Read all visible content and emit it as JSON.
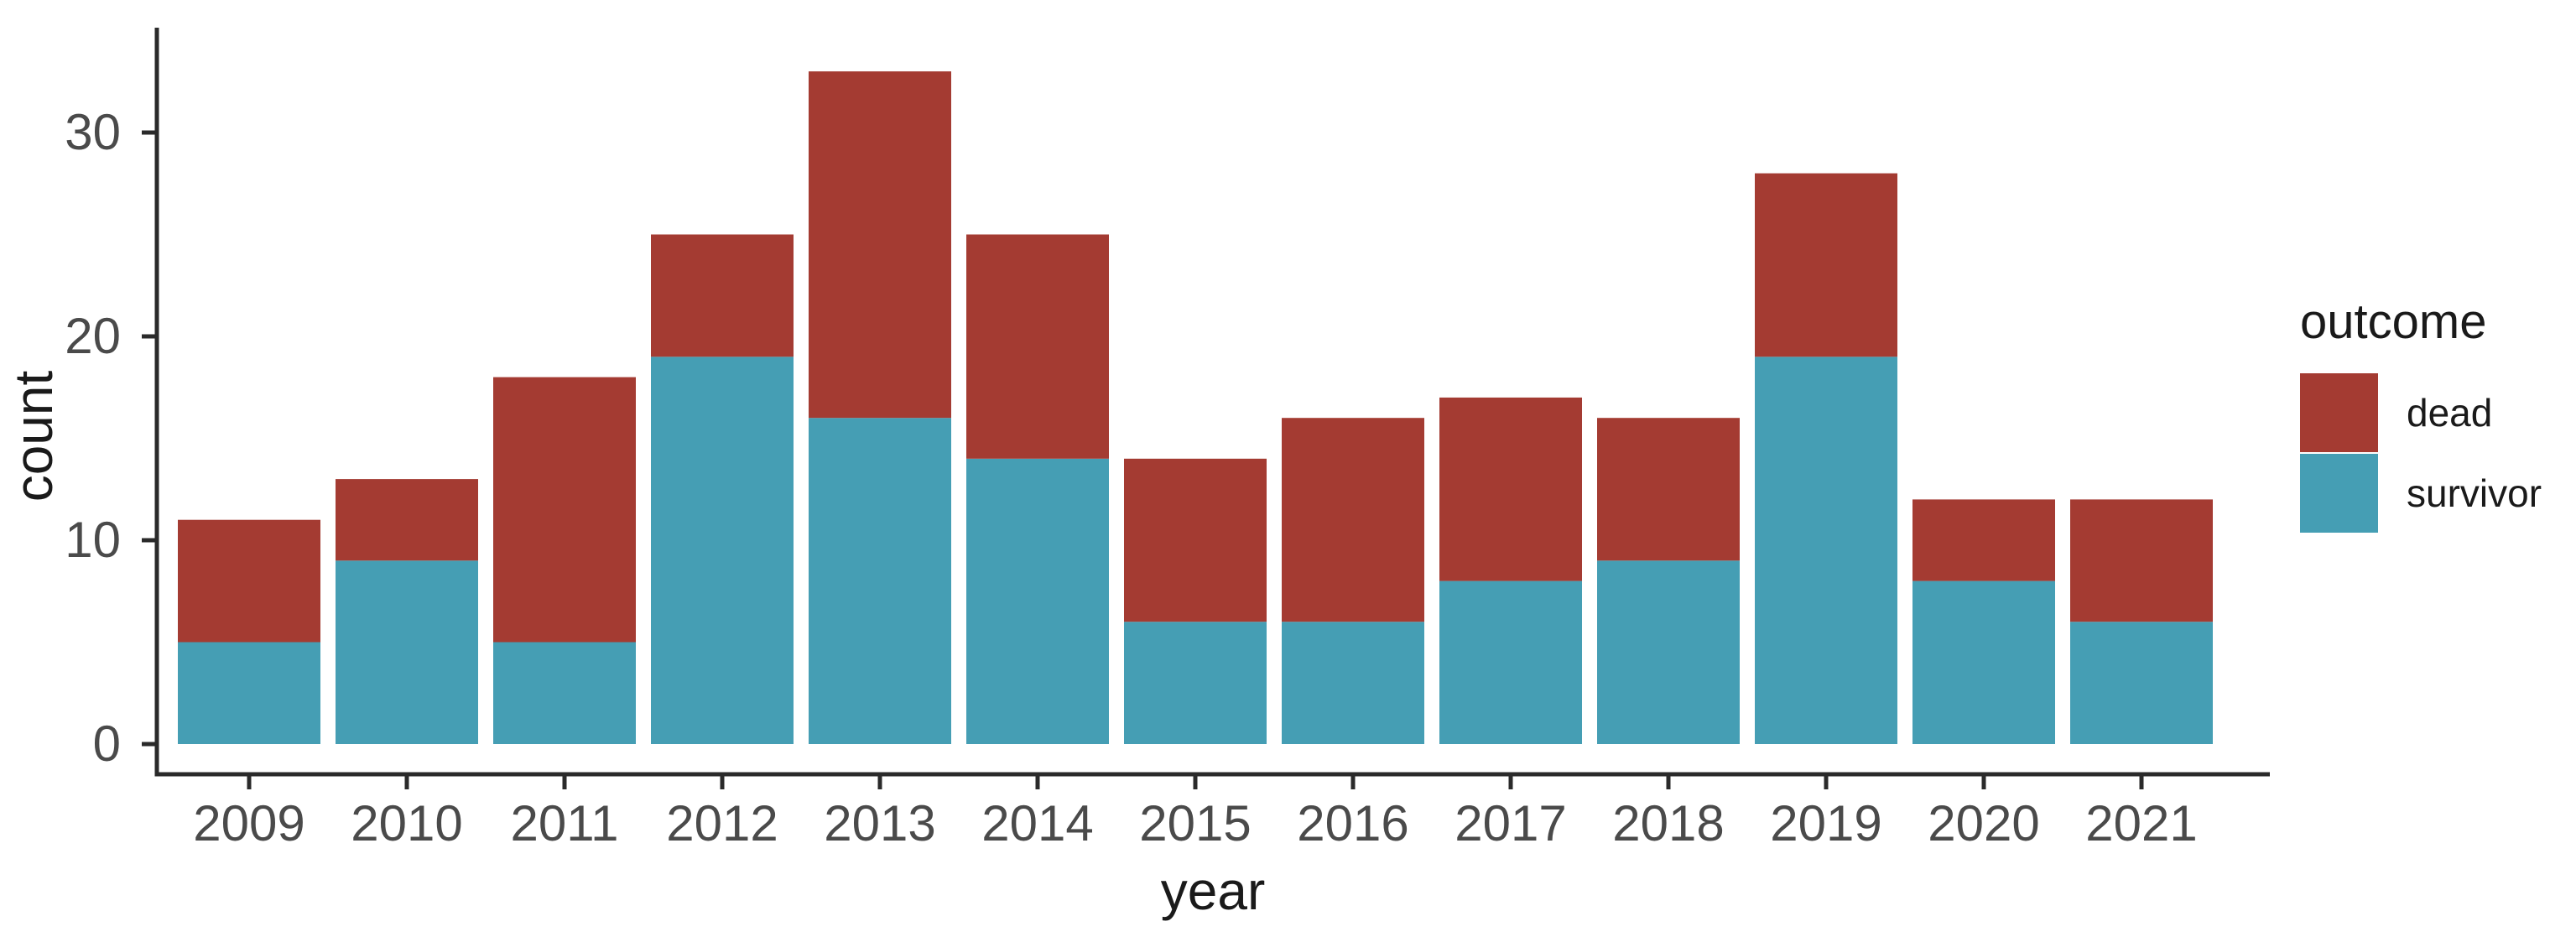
{
  "chart_data": {
    "type": "bar",
    "stacked": true,
    "title": "",
    "xlabel": "year",
    "ylabel": "count",
    "categories": [
      "2009",
      "2010",
      "2011",
      "2012",
      "2013",
      "2014",
      "2015",
      "2016",
      "2017",
      "2018",
      "2019",
      "2020",
      "2021"
    ],
    "series": [
      {
        "name": "dead",
        "color": "#A43B32",
        "values": [
          6,
          4,
          13,
          6,
          17,
          11,
          8,
          10,
          9,
          7,
          9,
          4,
          6
        ]
      },
      {
        "name": "survivor",
        "color": "#459EB4",
        "values": [
          5,
          9,
          5,
          19,
          16,
          14,
          6,
          6,
          8,
          9,
          19,
          8,
          6
        ]
      }
    ],
    "stack_bottom_to_top": [
      "survivor",
      "dead"
    ],
    "totals": [
      11,
      13,
      18,
      25,
      33,
      25,
      14,
      16,
      17,
      16,
      28,
      12,
      12
    ],
    "ylim": [
      0,
      33
    ],
    "yticks": [
      0,
      10,
      20,
      30
    ],
    "grid": false,
    "axis_color": "#2a2a2a",
    "tick_label_color": "#4a4a4a",
    "legend": {
      "title": "outcome",
      "position": "right",
      "items": [
        "dead",
        "survivor"
      ]
    }
  }
}
